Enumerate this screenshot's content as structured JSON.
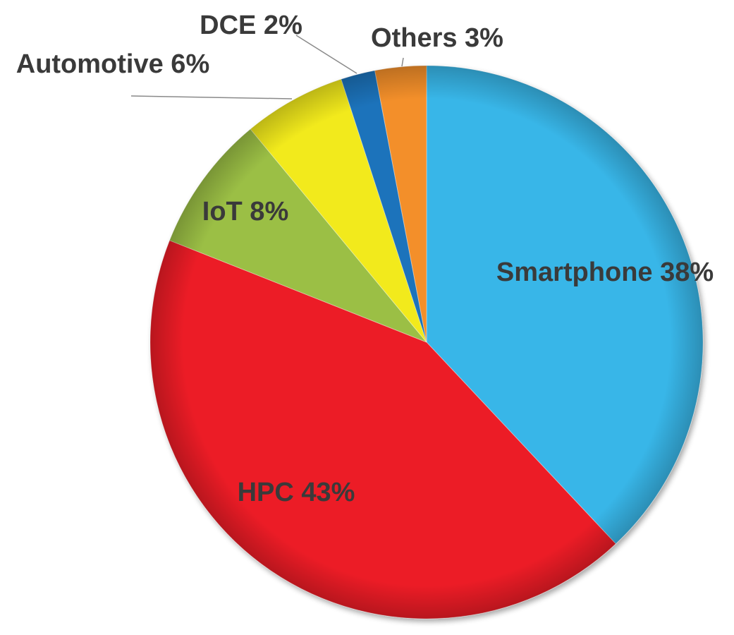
{
  "chart_data": {
    "type": "pie",
    "title": "",
    "slices": [
      {
        "name": "Smartphone",
        "value": 38,
        "label": "Smartphone  38%",
        "color": "#38b6e8"
      },
      {
        "name": "HPC",
        "value": 43,
        "label": "HPC 43%",
        "color": "#ec1f27"
      },
      {
        "name": "IoT",
        "value": 8,
        "label": "IoT 8%",
        "color": "#9bbf45"
      },
      {
        "name": "Automotive",
        "value": 6,
        "label": "Automotive  6%",
        "color": "#f2ea1a"
      },
      {
        "name": "DCE",
        "value": 2,
        "label": "DCE 2%",
        "color": "#1e73bb"
      },
      {
        "name": "Others",
        "value": 3,
        "label": "Others 3%",
        "color": "#f38f2c"
      }
    ]
  }
}
